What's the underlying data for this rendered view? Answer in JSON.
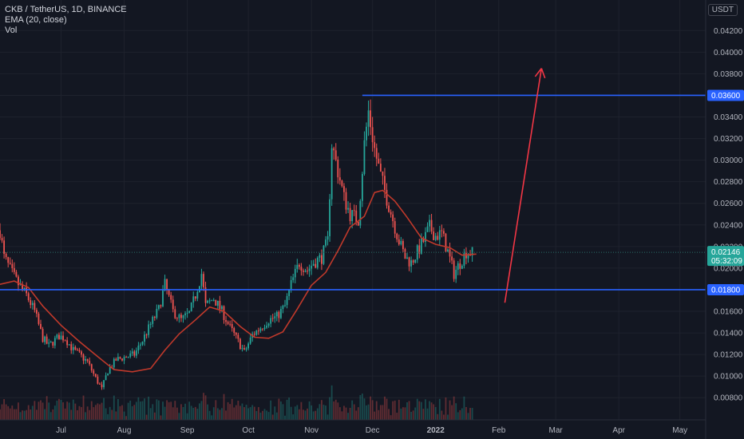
{
  "legend": {
    "symbol": "CKB / TetherUS, 1D, BINANCE",
    "indicator": "EMA (20, close)",
    "volume": "Vol"
  },
  "axis": {
    "currency": "USDT"
  },
  "colors": {
    "background": "#131722",
    "up": "#26a69a",
    "down": "#ef5350",
    "ema": "#c0392b",
    "level": "#2962ff",
    "arrow": "#f23645",
    "grid": "#1e222d"
  },
  "chart_data": {
    "type": "candlestick",
    "x_ticks": [
      "Jul",
      "Aug",
      "Sep",
      "Oct",
      "Nov",
      "Dec",
      "2022",
      "Feb",
      "Mar",
      "Apr",
      "May"
    ],
    "y_ticks": [
      0.008,
      0.01,
      0.012,
      0.014,
      0.016,
      0.018,
      0.02,
      0.022,
      0.024,
      0.026,
      0.028,
      0.03,
      0.032,
      0.034,
      0.036,
      0.038,
      0.04,
      0.042
    ],
    "y_tick_labels": [
      "0.00800",
      "0.01000",
      "0.01200",
      "0.01400",
      "0.01600",
      "0.01800",
      "0.02000",
      "0.02200",
      "0.02400",
      "0.02600",
      "0.02800",
      "0.03000",
      "0.03200",
      "0.03400",
      "0.03600",
      "0.03800",
      "0.04000",
      "0.04200"
    ],
    "ylim": [
      0.0075,
      0.0435
    ],
    "price_path": [
      [
        "2021-06-01",
        0.0235
      ],
      [
        "2021-06-03",
        0.021
      ],
      [
        "2021-06-07",
        0.0195
      ],
      [
        "2021-06-10",
        0.0185
      ],
      [
        "2021-06-14",
        0.0175
      ],
      [
        "2021-06-18",
        0.016
      ],
      [
        "2021-06-22",
        0.0135
      ],
      [
        "2021-06-25",
        0.0128
      ],
      [
        "2021-06-30",
        0.0137
      ],
      [
        "2021-07-03",
        0.0135
      ],
      [
        "2021-07-07",
        0.0124
      ],
      [
        "2021-07-10",
        0.012
      ],
      [
        "2021-07-14",
        0.0113
      ],
      [
        "2021-07-18",
        0.0098
      ],
      [
        "2021-07-21",
        0.0088
      ],
      [
        "2021-07-24",
        0.0105
      ],
      [
        "2021-07-28",
        0.0115
      ],
      [
        "2021-08-02",
        0.0118
      ],
      [
        "2021-08-06",
        0.012
      ],
      [
        "2021-08-10",
        0.0133
      ],
      [
        "2021-08-14",
        0.0148
      ],
      [
        "2021-08-18",
        0.0162
      ],
      [
        "2021-08-21",
        0.0185
      ],
      [
        "2021-08-25",
        0.016
      ],
      [
        "2021-08-29",
        0.0152
      ],
      [
        "2021-09-02",
        0.0158
      ],
      [
        "2021-09-05",
        0.0175
      ],
      [
        "2021-09-08",
        0.0195
      ],
      [
        "2021-09-10",
        0.0165
      ],
      [
        "2021-09-14",
        0.0172
      ],
      [
        "2021-09-18",
        0.016
      ],
      [
        "2021-09-22",
        0.0145
      ],
      [
        "2021-09-26",
        0.0132
      ],
      [
        "2021-09-29",
        0.0122
      ],
      [
        "2021-10-03",
        0.0138
      ],
      [
        "2021-10-07",
        0.0145
      ],
      [
        "2021-10-11",
        0.0152
      ],
      [
        "2021-10-15",
        0.0155
      ],
      [
        "2021-10-19",
        0.0165
      ],
      [
        "2021-10-22",
        0.0185
      ],
      [
        "2021-10-26",
        0.0205
      ],
      [
        "2021-10-30",
        0.0198
      ],
      [
        "2021-11-02",
        0.0205
      ],
      [
        "2021-11-06",
        0.021
      ],
      [
        "2021-11-09",
        0.0225
      ],
      [
        "2021-11-11",
        0.0315
      ],
      [
        "2021-11-14",
        0.029
      ],
      [
        "2021-11-17",
        0.0265
      ],
      [
        "2021-11-20",
        0.025
      ],
      [
        "2021-11-24",
        0.0245
      ],
      [
        "2021-11-27",
        0.0315
      ],
      [
        "2021-11-29",
        0.0345
      ],
      [
        "2021-12-02",
        0.031
      ],
      [
        "2021-12-05",
        0.0285
      ],
      [
        "2021-12-08",
        0.0265
      ],
      [
        "2021-12-11",
        0.0245
      ],
      [
        "2021-12-14",
        0.0225
      ],
      [
        "2021-12-17",
        0.021
      ],
      [
        "2021-12-20",
        0.0205
      ],
      [
        "2021-12-23",
        0.0215
      ],
      [
        "2021-12-26",
        0.0225
      ],
      [
        "2021-12-29",
        0.0238
      ],
      [
        "2022-01-01",
        0.023
      ],
      [
        "2022-01-04",
        0.0232
      ],
      [
        "2022-01-07",
        0.0215
      ],
      [
        "2022-01-10",
        0.0195
      ],
      [
        "2022-01-13",
        0.0205
      ],
      [
        "2022-01-16",
        0.0215
      ],
      [
        "2022-01-19",
        0.0214
      ]
    ],
    "ema_path": [
      [
        "2021-06-01",
        0.0185
      ],
      [
        "2021-06-08",
        0.0188
      ],
      [
        "2021-06-15",
        0.0182
      ],
      [
        "2021-06-22",
        0.0165
      ],
      [
        "2021-07-01",
        0.0147
      ],
      [
        "2021-07-10",
        0.0132
      ],
      [
        "2021-07-19",
        0.0118
      ],
      [
        "2021-07-27",
        0.0106
      ],
      [
        "2021-08-05",
        0.0104
      ],
      [
        "2021-08-14",
        0.0107
      ],
      [
        "2021-08-21",
        0.0124
      ],
      [
        "2021-08-28",
        0.0139
      ],
      [
        "2021-09-05",
        0.0152
      ],
      [
        "2021-09-12",
        0.0164
      ],
      [
        "2021-09-19",
        0.016
      ],
      [
        "2021-09-27",
        0.0146
      ],
      [
        "2021-10-04",
        0.0136
      ],
      [
        "2021-10-11",
        0.0135
      ],
      [
        "2021-10-18",
        0.0141
      ],
      [
        "2021-10-25",
        0.0162
      ],
      [
        "2021-11-01",
        0.0184
      ],
      [
        "2021-11-08",
        0.0196
      ],
      [
        "2021-11-14",
        0.0216
      ],
      [
        "2021-11-20",
        0.0238
      ],
      [
        "2021-11-27",
        0.0248
      ],
      [
        "2021-12-02",
        0.027
      ],
      [
        "2021-12-06",
        0.0272
      ],
      [
        "2021-12-12",
        0.0262
      ],
      [
        "2021-12-18",
        0.0247
      ],
      [
        "2021-12-25",
        0.0228
      ],
      [
        "2022-01-01",
        0.0222
      ],
      [
        "2022-01-08",
        0.0219
      ],
      [
        "2022-01-14",
        0.0212
      ],
      [
        "2022-01-21",
        0.0213
      ]
    ],
    "levels": [
      {
        "value": 0.036,
        "label": "0.03600",
        "from": "2021-11-26"
      },
      {
        "value": 0.018,
        "label": "0.01800",
        "from": "2021-06-01"
      }
    ],
    "last_price": {
      "value": 0.02146,
      "label": "0.02146",
      "countdown": "05:32:09"
    },
    "arrow": {
      "from": [
        "2022-02-04",
        0.0168
      ],
      "to": [
        "2022-02-22",
        0.0385
      ]
    }
  }
}
